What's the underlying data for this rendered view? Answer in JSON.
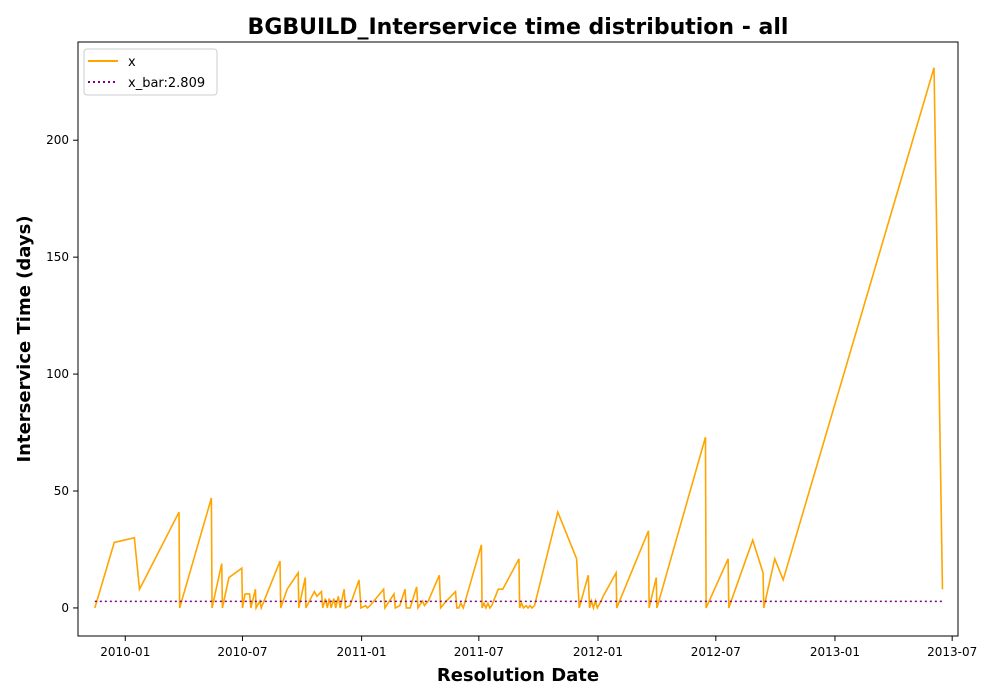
{
  "chart_data": {
    "type": "line",
    "title": "BGBUILD_Interservice time distribution - all",
    "xlabel": "Resolution Date",
    "ylabel": "Interservice Time (days)",
    "x_axis_type": "date",
    "xlim": [
      "2009-10-20",
      "2013-07-10"
    ],
    "ylim": [
      -12,
      242
    ],
    "x_ticks": [
      "2010-01",
      "2010-07",
      "2011-01",
      "2011-07",
      "2012-01",
      "2012-07",
      "2013-01",
      "2013-07"
    ],
    "y_ticks": [
      0,
      50,
      100,
      150,
      200
    ],
    "grid": false,
    "legend": "upper-left",
    "series": [
      {
        "name": "x",
        "color": "#ffa500",
        "style": "solid",
        "points": [
          [
            "2009-11-15",
            0
          ],
          [
            "2009-12-15",
            28
          ],
          [
            "2010-01-15",
            30
          ],
          [
            "2010-01-23",
            8
          ],
          [
            "2010-02-05",
            15
          ],
          [
            "2010-03-25",
            41
          ],
          [
            "2010-03-26",
            0
          ],
          [
            "2010-05-14",
            47
          ],
          [
            "2010-05-15",
            0
          ],
          [
            "2010-05-30",
            19
          ],
          [
            "2010-05-31",
            0
          ],
          [
            "2010-06-10",
            13
          ],
          [
            "2010-06-30",
            17
          ],
          [
            "2010-07-01",
            0
          ],
          [
            "2010-07-05",
            6
          ],
          [
            "2010-07-12",
            6
          ],
          [
            "2010-07-14",
            0
          ],
          [
            "2010-07-21",
            8
          ],
          [
            "2010-07-22",
            0
          ],
          [
            "2010-07-28",
            3
          ],
          [
            "2010-07-30",
            0
          ],
          [
            "2010-08-28",
            20
          ],
          [
            "2010-08-29",
            0
          ],
          [
            "2010-09-08",
            8
          ],
          [
            "2010-09-25",
            15
          ],
          [
            "2010-09-26",
            0
          ],
          [
            "2010-10-06",
            13
          ],
          [
            "2010-10-07",
            0
          ],
          [
            "2010-10-20",
            7
          ],
          [
            "2010-10-24",
            5
          ],
          [
            "2010-10-31",
            7
          ],
          [
            "2010-11-02",
            0
          ],
          [
            "2010-11-06",
            4
          ],
          [
            "2010-11-09",
            0
          ],
          [
            "2010-11-12",
            4
          ],
          [
            "2010-11-15",
            0
          ],
          [
            "2010-11-19",
            4
          ],
          [
            "2010-11-22",
            0
          ],
          [
            "2010-11-26",
            5
          ],
          [
            "2010-11-29",
            0
          ],
          [
            "2010-12-05",
            8
          ],
          [
            "2010-12-07",
            0
          ],
          [
            "2010-12-14",
            1
          ],
          [
            "2010-12-28",
            12
          ],
          [
            "2010-12-31",
            0
          ],
          [
            "2011-01-07",
            1
          ],
          [
            "2011-01-10",
            0
          ],
          [
            "2011-01-14",
            1
          ],
          [
            "2011-02-04",
            8
          ],
          [
            "2011-02-06",
            0
          ],
          [
            "2011-02-20",
            6
          ],
          [
            "2011-02-22",
            0
          ],
          [
            "2011-03-01",
            1
          ],
          [
            "2011-03-09",
            8
          ],
          [
            "2011-03-11",
            0
          ],
          [
            "2011-03-17",
            0
          ],
          [
            "2011-03-27",
            9
          ],
          [
            "2011-03-29",
            0
          ],
          [
            "2011-04-05",
            3
          ],
          [
            "2011-04-08",
            1
          ],
          [
            "2011-04-14",
            3
          ],
          [
            "2011-05-01",
            14
          ],
          [
            "2011-05-03",
            0
          ],
          [
            "2011-05-12",
            3
          ],
          [
            "2011-05-26",
            7
          ],
          [
            "2011-05-28",
            0
          ],
          [
            "2011-05-31",
            0
          ],
          [
            "2011-06-03",
            2
          ],
          [
            "2011-06-07",
            0
          ],
          [
            "2011-07-05",
            27
          ],
          [
            "2011-07-06",
            0
          ],
          [
            "2011-07-09",
            2
          ],
          [
            "2011-07-12",
            0
          ],
          [
            "2011-07-15",
            2
          ],
          [
            "2011-07-18",
            0
          ],
          [
            "2011-07-21",
            1
          ],
          [
            "2011-07-31",
            8
          ],
          [
            "2011-08-07",
            8
          ],
          [
            "2011-09-01",
            21
          ],
          [
            "2011-09-02",
            0
          ],
          [
            "2011-09-05",
            2
          ],
          [
            "2011-09-08",
            0
          ],
          [
            "2011-09-12",
            1
          ],
          [
            "2011-09-15",
            0
          ],
          [
            "2011-09-18",
            1
          ],
          [
            "2011-09-21",
            0
          ],
          [
            "2011-09-25",
            1
          ],
          [
            "2011-10-31",
            41
          ],
          [
            "2011-11-29",
            21
          ],
          [
            "2011-12-03",
            0
          ],
          [
            "2011-12-17",
            14
          ],
          [
            "2011-12-19",
            0
          ],
          [
            "2011-12-22",
            3
          ],
          [
            "2011-12-25",
            0
          ],
          [
            "2011-12-28",
            3
          ],
          [
            "2011-12-31",
            0
          ],
          [
            "2012-01-06",
            3
          ],
          [
            "2012-01-09",
            5
          ],
          [
            "2012-01-29",
            15
          ],
          [
            "2012-01-30",
            0
          ],
          [
            "2012-03-19",
            33
          ],
          [
            "2012-03-20",
            0
          ],
          [
            "2012-03-31",
            13
          ],
          [
            "2012-04-01",
            0
          ],
          [
            "2012-06-15",
            73
          ],
          [
            "2012-06-16",
            0
          ],
          [
            "2012-07-20",
            21
          ],
          [
            "2012-07-21",
            0
          ],
          [
            "2012-08-27",
            29
          ],
          [
            "2012-09-12",
            15
          ],
          [
            "2012-09-13",
            0
          ],
          [
            "2012-09-30",
            21
          ],
          [
            "2012-10-13",
            12
          ],
          [
            "2013-06-03",
            231
          ],
          [
            "2013-06-16",
            8
          ]
        ]
      },
      {
        "name": "x_bar:2.809",
        "color": "#800080",
        "style": "dotted",
        "points": [
          [
            "2009-11-15",
            2.809
          ],
          [
            "2013-06-16",
            2.809
          ]
        ]
      }
    ]
  }
}
